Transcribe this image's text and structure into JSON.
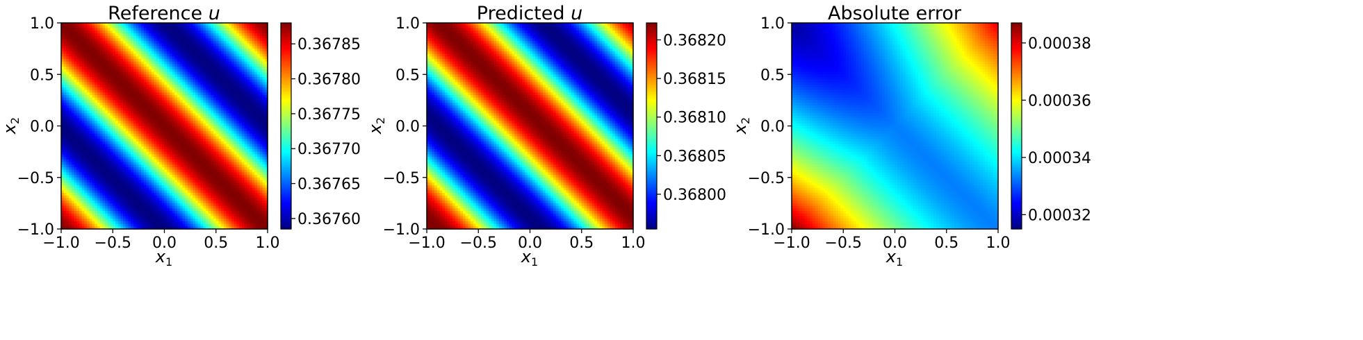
{
  "chart_data": [
    {
      "type": "heatmap",
      "title_text": "Reference ",
      "title_var": "u",
      "xlabel_base": "x",
      "xlabel_sub": "1",
      "ylabel_base": "x",
      "ylabel_sub": "2",
      "xlim": [
        -1.0,
        1.0
      ],
      "ylim": [
        -1.0,
        1.0
      ],
      "xticks": [
        "−1.0",
        "−0.5",
        "0.0",
        "0.5",
        "1.0"
      ],
      "yticks": [
        "−1.0",
        "−0.5",
        "0.0",
        "0.5",
        "1.0"
      ],
      "colormap": "jet",
      "colorbar": {
        "range": [
          0.367585,
          0.36788
        ],
        "ticks": [
          0.3676,
          0.36765,
          0.3677,
          0.36775,
          0.3678,
          0.36785
        ],
        "tick_labels": [
          "0.36760",
          "0.36765",
          "0.36770",
          "0.36775",
          "0.36780",
          "0.36785"
        ]
      },
      "field": {
        "kind": "wave",
        "min": 0.367585,
        "max": 0.36788,
        "shift": 0.0
      }
    },
    {
      "type": "heatmap",
      "title_text": "Predicted ",
      "title_var": "u",
      "xlabel_base": "x",
      "xlabel_sub": "1",
      "ylabel_base": "x",
      "ylabel_sub": "2",
      "xlim": [
        -1.0,
        1.0
      ],
      "ylim": [
        -1.0,
        1.0
      ],
      "xticks": [
        "−1.0",
        "−0.5",
        "0.0",
        "0.5",
        "1.0"
      ],
      "yticks": [
        "−1.0",
        "−0.5",
        "0.0",
        "0.5",
        "1.0"
      ],
      "colormap": "jet",
      "colorbar": {
        "range": [
          0.367955,
          0.368222
        ],
        "ticks": [
          0.368,
          0.36805,
          0.3681,
          0.36815,
          0.3682
        ],
        "tick_labels": [
          "0.36800",
          "0.36805",
          "0.36810",
          "0.36815",
          "0.36820"
        ]
      },
      "field": {
        "kind": "wave",
        "min": 0.367955,
        "max": 0.368222,
        "shift": 0.12
      }
    },
    {
      "type": "heatmap",
      "title_text": "Absolute error",
      "title_var": "",
      "xlabel_base": "x",
      "xlabel_sub": "1",
      "ylabel_base": "x",
      "ylabel_sub": "2",
      "xlim": [
        -1.0,
        1.0
      ],
      "ylim": [
        -1.0,
        1.0
      ],
      "xticks": [
        "−1.0",
        "−0.5",
        "0.0",
        "0.5",
        "1.0"
      ],
      "yticks": [
        "−1.0",
        "−0.5",
        "0.0",
        "0.5",
        "1.0"
      ],
      "colormap": "jet",
      "colorbar": {
        "range": [
          0.000315,
          0.000387
        ],
        "ticks": [
          0.00032,
          0.00034,
          0.00036,
          0.00038
        ],
        "tick_labels": [
          "0.00032",
          "0.00034",
          "0.00036",
          "0.00038"
        ]
      },
      "field": {
        "kind": "error",
        "min": 0.000315,
        "max": 0.000387
      }
    }
  ]
}
